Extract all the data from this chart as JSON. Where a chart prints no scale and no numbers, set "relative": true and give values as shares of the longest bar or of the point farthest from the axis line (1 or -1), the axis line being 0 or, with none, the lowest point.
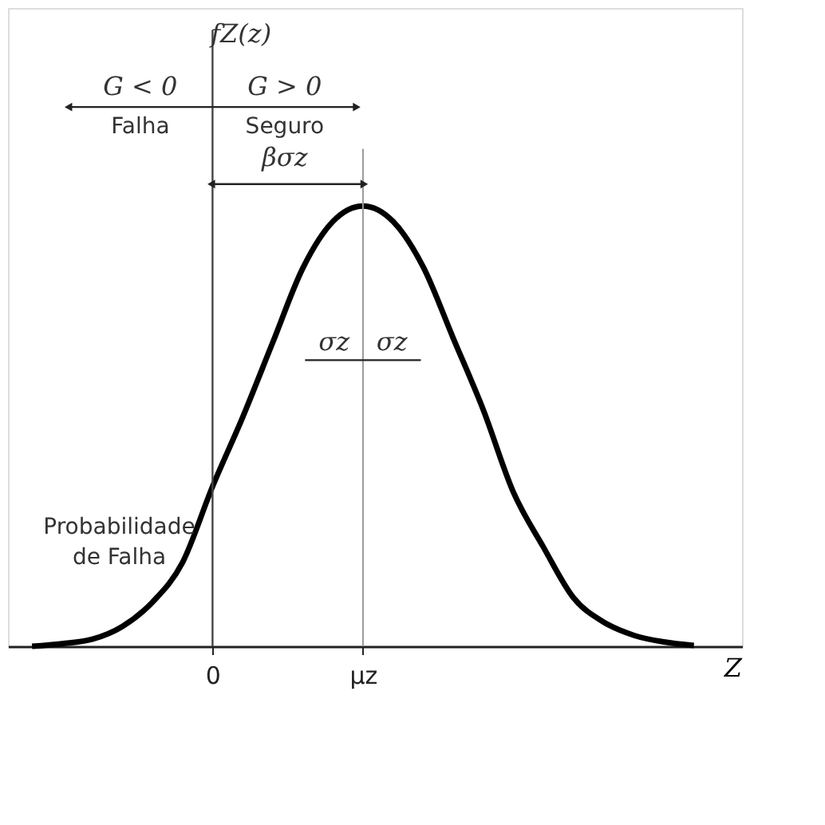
{
  "chart_data": {
    "type": "line",
    "relative": true,
    "xlabel": "Z",
    "categories": [
      null,
      null,
      null,
      null,
      null,
      null,
      "0",
      null,
      null,
      null,
      null,
      "μz",
      null,
      null,
      null,
      null,
      null,
      null,
      null,
      null,
      null,
      null,
      null
    ],
    "series": [
      {
        "color": "#000000",
        "values": [
          0,
          0.006,
          0.016,
          0.045,
          0.1,
          0.19,
          0.363,
          0.52,
          0.69,
          0.859,
          0.965,
          1,
          0.965,
          0.862,
          0.7,
          0.537,
          0.35,
          0.225,
          0.11,
          0.055,
          0.025,
          0.01,
          0.002
        ]
      }
    ],
    "ref_lines": [
      {
        "axis": "x",
        "value": "μz",
        "color": "#999999"
      }
    ],
    "annotations": [
      "G < 0",
      "G > 0",
      "Falha",
      "Seguro",
      "βσz",
      "σz",
      "σz",
      "Probabilidade de Falha",
      "fZ(z)"
    ],
    "grid": false,
    "legend": false,
    "marker": "none",
    "line_style": "solid"
  }
}
